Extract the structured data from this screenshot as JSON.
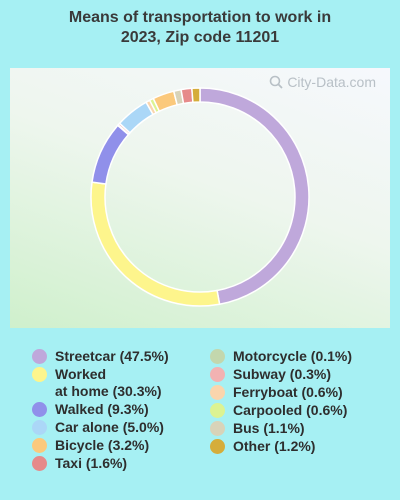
{
  "chart_data": {
    "type": "pie",
    "title": "Means of transportation to work in 2023, Zip code 11201",
    "title_lines": [
      "Means of transportation to work in",
      "2023, Zip code 11201"
    ],
    "style": "donut",
    "slices": [
      {
        "label": "Streetcar (47.5%)",
        "value": 47.5,
        "color": "#bfa8db"
      },
      {
        "label": "Worked at home (30.3%)",
        "label_lines": [
          "Worked",
          "at home (30.3%)"
        ],
        "value": 30.3,
        "color": "#fdf58c"
      },
      {
        "label": "Walked (9.3%)",
        "value": 9.3,
        "color": "#9090ea"
      },
      {
        "label": "Motorcycle (0.1%)",
        "value": 0.1,
        "color": "#c3d7ad"
      },
      {
        "label": "Subway (0.3%)",
        "value": 0.3,
        "color": "#f2b2b2"
      },
      {
        "label": "Car alone (5.0%)",
        "value": 5.0,
        "color": "#abd7f7"
      },
      {
        "label": "Ferryboat (0.6%)",
        "value": 0.6,
        "color": "#fad5ad"
      },
      {
        "label": "Carpooled (0.6%)",
        "value": 0.6,
        "color": "#dcf392"
      },
      {
        "label": "Bicycle (3.2%)",
        "value": 3.2,
        "color": "#fbc97c"
      },
      {
        "label": "Bus (1.1%)",
        "value": 1.1,
        "color": "#d8d3b9"
      },
      {
        "label": "Taxi (1.6%)",
        "value": 1.6,
        "color": "#e68a8a"
      },
      {
        "label": "Other (1.2%)",
        "value": 1.2,
        "color": "#d5ad3a"
      }
    ],
    "legend_left": [
      0,
      1,
      2,
      5,
      8,
      10
    ],
    "legend_right": [
      3,
      4,
      6,
      7,
      9,
      11
    ],
    "legend_placement": "bottom"
  },
  "watermark": "City-Data.com",
  "colors": {
    "background": "#a6f0f3"
  }
}
